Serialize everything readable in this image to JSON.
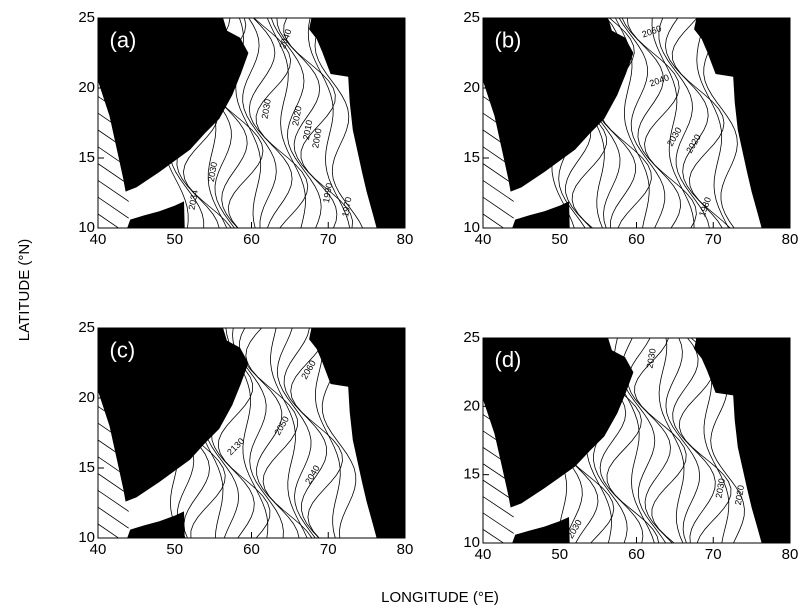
{
  "y_axis_title": "LATITUDE (°N)",
  "x_axis_title": "LONGITUDE (°E)",
  "panels": [
    {
      "label": "(a)",
      "xlim": [
        40,
        80
      ],
      "ylim": [
        10,
        25
      ],
      "xticks": [
        40,
        50,
        60,
        70,
        80
      ],
      "yticks": [
        10,
        15,
        20,
        25
      ],
      "contour_labels": [
        "2040",
        "2030",
        "2020",
        "2010",
        "2000",
        "1990",
        "1970",
        "2030",
        "2034"
      ]
    },
    {
      "label": "(b)",
      "xlim": [
        40,
        80
      ],
      "ylim": [
        10,
        25
      ],
      "xticks": [
        40,
        50,
        60,
        70,
        80
      ],
      "yticks": [
        10,
        15,
        20,
        25
      ],
      "contour_labels": [
        "2060",
        "2040",
        "2030",
        "2020",
        "1980"
      ]
    },
    {
      "label": "(c)",
      "xlim": [
        40,
        80
      ],
      "ylim": [
        10,
        25
      ],
      "xticks": [
        40,
        50,
        60,
        70,
        80
      ],
      "yticks": [
        10,
        15,
        20,
        25
      ],
      "contour_labels": [
        "2060",
        "2130",
        "2050",
        "2040"
      ]
    },
    {
      "label": "(d)",
      "xlim": [
        40,
        80
      ],
      "ylim": [
        10,
        25
      ],
      "xticks": [
        40,
        50,
        60,
        70,
        80
      ],
      "yticks": [
        10,
        15,
        20,
        25
      ],
      "contour_labels": [
        "2030",
        "2030",
        "2020",
        "2030"
      ]
    }
  ]
}
